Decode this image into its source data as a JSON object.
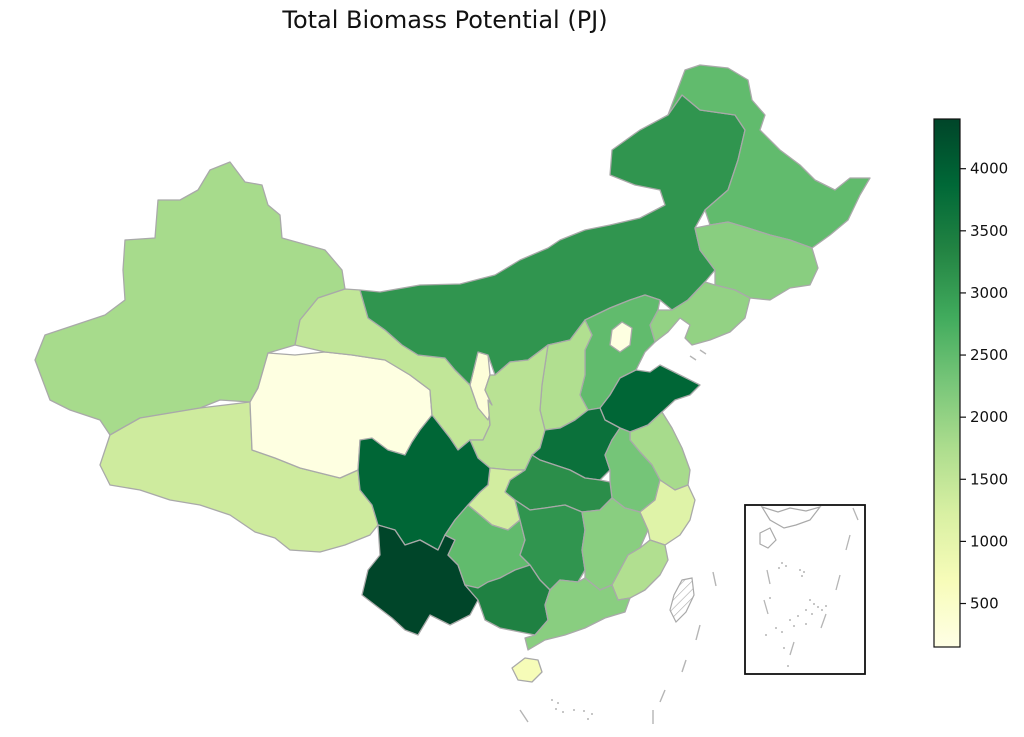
{
  "title": "Total Biomass Potential (PJ)",
  "colorbar": {
    "min": 150,
    "max": 4400,
    "ticks": [
      500,
      1000,
      1500,
      2000,
      2500,
      3000,
      3500,
      4000
    ],
    "tick_labels": [
      "500",
      "1000",
      "1500",
      "2000",
      "2500",
      "3000",
      "3500",
      "4000"
    ],
    "colors": [
      "#ffffe5",
      "#f7fcb9",
      "#d9f0a3",
      "#addd8e",
      "#78c679",
      "#41ab5d",
      "#238443",
      "#006837",
      "#004529"
    ]
  },
  "regions": [
    {
      "id": "xinjiang",
      "value": 1800
    },
    {
      "id": "tibet",
      "value": 1350
    },
    {
      "id": "qinghai",
      "value": 200
    },
    {
      "id": "gansu",
      "value": 1500
    },
    {
      "id": "ningxia",
      "value": 300
    },
    {
      "id": "inner-mongolia",
      "value": 3100
    },
    {
      "id": "heilongjiang",
      "value": 2500
    },
    {
      "id": "jilin",
      "value": 2100
    },
    {
      "id": "liaoning",
      "value": 2000
    },
    {
      "id": "hebei",
      "value": 2500
    },
    {
      "id": "beijing",
      "value": 200
    },
    {
      "id": "shanxi",
      "value": 1700
    },
    {
      "id": "shaanxi",
      "value": 1600
    },
    {
      "id": "shandong",
      "value": 3900
    },
    {
      "id": "henan",
      "value": 3700
    },
    {
      "id": "jiangsu",
      "value": 1800
    },
    {
      "id": "anhui",
      "value": 2300
    },
    {
      "id": "hubei",
      "value": 3200
    },
    {
      "id": "sichuan",
      "value": 3900
    },
    {
      "id": "chongqing",
      "value": 1300
    },
    {
      "id": "yunnan",
      "value": 4400
    },
    {
      "id": "guizhou",
      "value": 2500
    },
    {
      "id": "hunan",
      "value": 3100
    },
    {
      "id": "jiangxi",
      "value": 2100
    },
    {
      "id": "zhejiang",
      "value": 1100
    },
    {
      "id": "fujian",
      "value": 1700
    },
    {
      "id": "guangxi",
      "value": 3400
    },
    {
      "id": "guangdong",
      "value": 2100
    },
    {
      "id": "hainan",
      "value": 700
    }
  ]
}
